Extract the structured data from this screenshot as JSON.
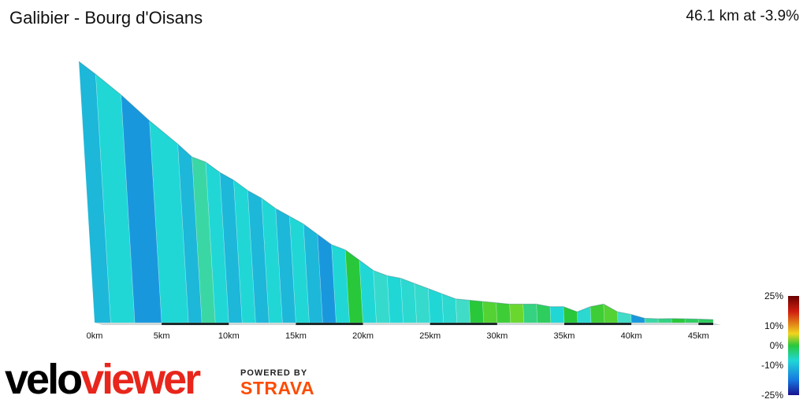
{
  "header": {
    "title": "Galibier - Bourg d'Oisans",
    "summary": "46.1 km at -3.9%"
  },
  "chart_data": {
    "type": "area",
    "title": "Galibier - Bourg d'Oisans",
    "xlabel": "",
    "ylabel": "",
    "xlim": [
      0,
      46.1
    ],
    "x_tick_labels": [
      "0km",
      "5km",
      "10km",
      "15km",
      "20km",
      "25km",
      "30km",
      "35km",
      "40km",
      "45km"
    ],
    "x_ticks": [
      0,
      5,
      10,
      15,
      20,
      25,
      30,
      35,
      40,
      45
    ],
    "profile_x_km": [
      0,
      1.2,
      3,
      5,
      7,
      8,
      9,
      10,
      11,
      12,
      13,
      14,
      15,
      16,
      17,
      18,
      19,
      20,
      21,
      22,
      23,
      24,
      25,
      26,
      27,
      28,
      29,
      30,
      31,
      32,
      33,
      34,
      35,
      36,
      37,
      38,
      39,
      40,
      41,
      42,
      43,
      44,
      45,
      46.1
    ],
    "profile_elevation_rel": [
      1.0,
      0.95,
      0.87,
      0.77,
      0.68,
      0.63,
      0.61,
      0.57,
      0.54,
      0.5,
      0.47,
      0.43,
      0.4,
      0.37,
      0.33,
      0.29,
      0.27,
      0.23,
      0.19,
      0.17,
      0.16,
      0.14,
      0.12,
      0.1,
      0.08,
      0.075,
      0.07,
      0.065,
      0.06,
      0.06,
      0.06,
      0.05,
      0.05,
      0.03,
      0.05,
      0.06,
      0.03,
      0.02,
      0.005,
      0.003,
      0.004,
      0.003,
      0.002,
      0.0
    ],
    "segment_gradient_pct": [
      -8,
      -7,
      -9,
      -7,
      -8,
      -3,
      -7,
      -8,
      -7,
      -8,
      -7,
      -8,
      -7,
      -8,
      -9,
      -7,
      0,
      -7,
      -5,
      -7,
      -6,
      -5,
      -7,
      -6,
      -4,
      0,
      2,
      1,
      3,
      -2,
      -1,
      -7,
      0,
      -6,
      1,
      2,
      -4,
      -9,
      -3,
      -2,
      0,
      -1,
      -1
    ],
    "gradient_scale": {
      "labels": [
        "25%",
        "10%",
        "0%",
        "-10%",
        "-25%"
      ],
      "values": [
        25,
        10,
        0,
        -10,
        -25
      ]
    }
  },
  "branding": {
    "logo_part1": "velo",
    "logo_part2": "viewer",
    "powered_by": "POWERED BY",
    "strava": "STRAVA"
  }
}
